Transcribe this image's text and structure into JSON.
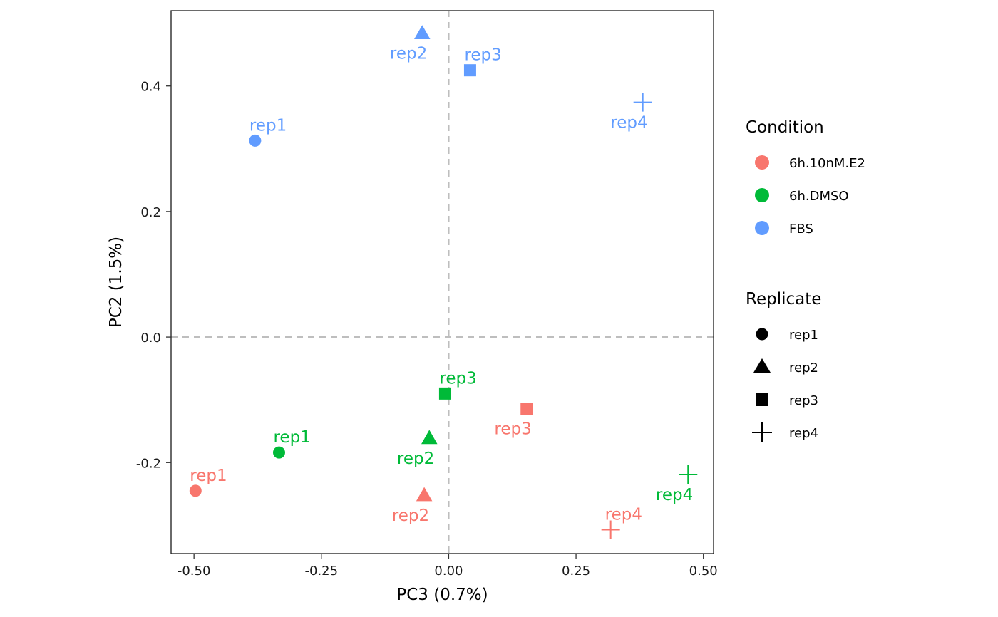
{
  "chart_data": {
    "type": "scatter",
    "xlabel": "PC3 (0.7%)",
    "ylabel": "PC2 (1.5%)",
    "xlim": [
      -0.545,
      0.52
    ],
    "ylim": [
      -0.345,
      0.52
    ],
    "xticks": [
      -0.5,
      -0.25,
      0.0,
      0.25,
      0.5
    ],
    "xtick_labels": [
      "-0.50",
      "-0.25",
      "0.00",
      "0.25",
      "0.50"
    ],
    "yticks": [
      -0.2,
      0.0,
      0.2,
      0.4
    ],
    "ytick_labels": [
      "-0.2",
      "0.0",
      "0.2",
      "0.4"
    ],
    "grid": false,
    "reference_lines": {
      "x": 0,
      "y": 0
    },
    "legend_placement": "right",
    "legends": [
      {
        "title": "Condition",
        "kind": "color",
        "items": [
          {
            "label": "6h.10nM.E2",
            "color": "#F8766D"
          },
          {
            "label": "6h.DMSO",
            "color": "#00BA38"
          },
          {
            "label": "FBS",
            "color": "#619CFF"
          }
        ]
      },
      {
        "title": "Replicate",
        "kind": "shape",
        "items": [
          {
            "label": "rep1",
            "shape": "circle"
          },
          {
            "label": "rep2",
            "shape": "triangle"
          },
          {
            "label": "rep3",
            "shape": "square"
          },
          {
            "label": "rep4",
            "shape": "plus"
          }
        ]
      }
    ],
    "points": [
      {
        "condition": "6h.10nM.E2",
        "replicate": "rep1",
        "x": -0.497,
        "y": -0.245,
        "label": "rep1",
        "label_pos": "above-right"
      },
      {
        "condition": "6h.10nM.E2",
        "replicate": "rep2",
        "x": -0.048,
        "y": -0.252,
        "label": "rep2",
        "label_pos": "below-left"
      },
      {
        "condition": "6h.10nM.E2",
        "replicate": "rep3",
        "x": 0.153,
        "y": -0.114,
        "label": "rep3",
        "label_pos": "below-left"
      },
      {
        "condition": "6h.10nM.E2",
        "replicate": "rep4",
        "x": 0.318,
        "y": -0.307,
        "label": "rep4",
        "label_pos": "above-right"
      },
      {
        "condition": "6h.DMSO",
        "replicate": "rep1",
        "x": -0.333,
        "y": -0.184,
        "label": "rep1",
        "label_pos": "above-right"
      },
      {
        "condition": "6h.DMSO",
        "replicate": "rep2",
        "x": -0.038,
        "y": -0.161,
        "label": "rep2",
        "label_pos": "below-left"
      },
      {
        "condition": "6h.DMSO",
        "replicate": "rep3",
        "x": -0.007,
        "y": -0.09,
        "label": "rep3",
        "label_pos": "above-right"
      },
      {
        "condition": "6h.DMSO",
        "replicate": "rep4",
        "x": 0.47,
        "y": -0.219,
        "label": "rep4",
        "label_pos": "below-left"
      },
      {
        "condition": "FBS",
        "replicate": "rep1",
        "x": -0.38,
        "y": 0.313,
        "label": "rep1",
        "label_pos": "above-right"
      },
      {
        "condition": "FBS",
        "replicate": "rep2",
        "x": -0.052,
        "y": 0.484,
        "label": "rep2",
        "label_pos": "below-left"
      },
      {
        "condition": "FBS",
        "replicate": "rep3",
        "x": 0.042,
        "y": 0.425,
        "label": "rep3",
        "label_pos": "above-right"
      },
      {
        "condition": "FBS",
        "replicate": "rep4",
        "x": 0.381,
        "y": 0.374,
        "label": "rep4",
        "label_pos": "below-left"
      }
    ]
  }
}
